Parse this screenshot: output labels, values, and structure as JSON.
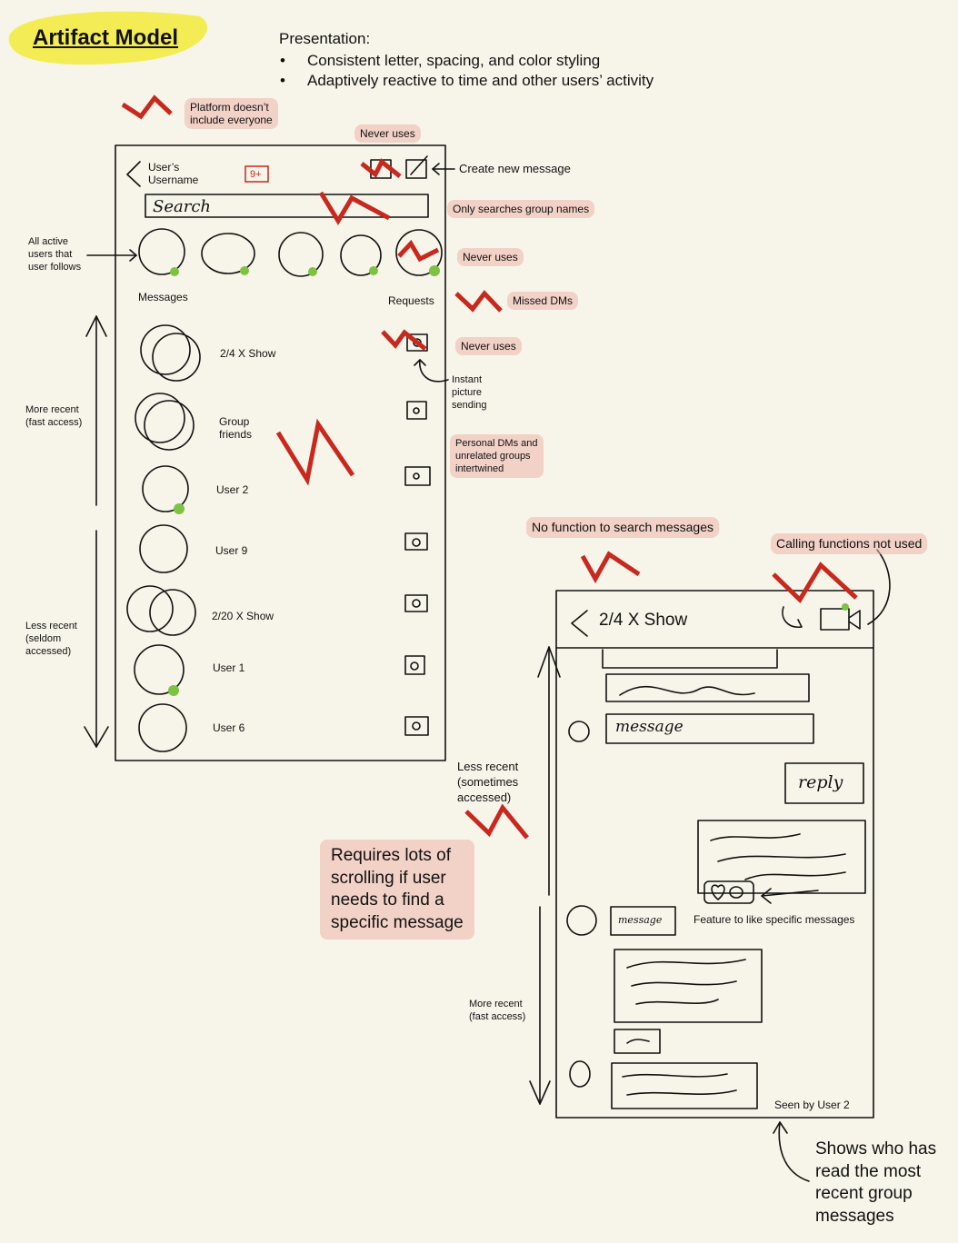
{
  "title": "Artifact Model",
  "presentation": {
    "heading": "Presentation:",
    "bullets": [
      "Consistent letter, spacing, and color styling",
      "Adaptively reactive to time and other users’ activity"
    ]
  },
  "inbox": {
    "username": [
      "User’s",
      "Username"
    ],
    "badge": "9+",
    "search": "Search",
    "messages_label": "Messages",
    "requests_label": "Requests",
    "conversations": [
      [
        "2/4 X Show"
      ],
      [
        "Group",
        "friends"
      ],
      [
        "User 2"
      ],
      [
        "User 9"
      ],
      [
        "2/20 X Show"
      ],
      [
        "User 1"
      ],
      [
        "User 6"
      ]
    ]
  },
  "chat": {
    "title": "2/4 X Show",
    "messages": [
      "message",
      "reply",
      "message"
    ],
    "seen": "Seen by User 2"
  },
  "annotations": [
    [
      "Platform doesn’t",
      "include everyone"
    ],
    [
      "Never uses"
    ],
    [
      "Create new message"
    ],
    [
      "Only searches group names"
    ],
    [
      "All active",
      "users that",
      "user follows"
    ],
    [
      "Never uses"
    ],
    [
      "Missed DMs"
    ],
    [
      "Never uses"
    ],
    [
      "Instant",
      "picture",
      "sending"
    ],
    [
      "Personal DMs and",
      "unrelated groups",
      "intertwined"
    ],
    [
      "More recent",
      "(fast access)"
    ],
    [
      "Less recent",
      "(seldom",
      "accessed)"
    ],
    [
      "No function to search messages"
    ],
    [
      "Calling functions not used"
    ],
    [
      "Less recent",
      "(sometimes",
      "accessed)"
    ],
    [
      "Requires lots of",
      "scrolling if user",
      "needs to find a",
      "specific message"
    ],
    [
      "Feature to like specific messages"
    ],
    [
      "More recent",
      "(fast access)"
    ],
    [
      "Shows who has",
      "read the most",
      "recent group",
      "messages"
    ]
  ]
}
